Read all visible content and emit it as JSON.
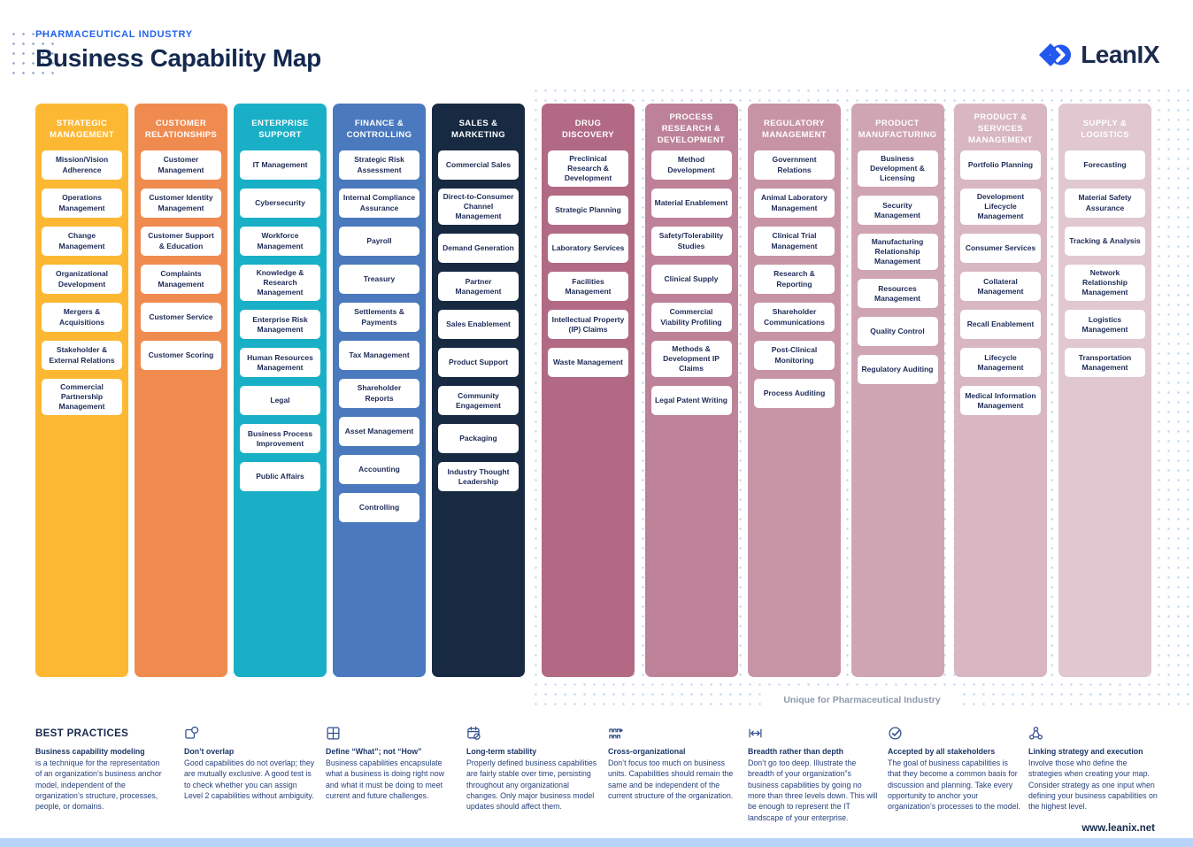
{
  "header": {
    "eyebrow": "PHARMACEUTICAL INDUSTRY",
    "title": "Business Capability Map",
    "logo_text": "LeanIX"
  },
  "brand_colors": {
    "eyebrow_blue": "#2563eb",
    "title_navy": "#14294e",
    "logo_blue": "#2257f0",
    "dot_blue": "#c2d6f2",
    "bottom_bar_blue": "#b9d3f8"
  },
  "columns": [
    {
      "title": "STRATEGIC MANAGEMENT",
      "color": "#FDB833",
      "items": [
        "Mission/Vision Adherence",
        "Operations Management",
        "Change Management",
        "Organizational Development",
        "Mergers & Acquisitions",
        "Stakeholder & External Relations",
        "Commercial Partnership Management"
      ]
    },
    {
      "title": "CUSTOMER RELATIONSHIPS",
      "color": "#F08B50",
      "items": [
        "Customer Management",
        "Customer Identity Management",
        "Customer Support & Education",
        "Complaints Management",
        "Customer Service",
        "Customer Scoring"
      ]
    },
    {
      "title": "ENTERPRISE SUPPORT",
      "color": "#19AFC7",
      "items": [
        "IT Management",
        "Cybersecurity",
        "Workforce Management",
        "Knowledge & Research Management",
        "Enterprise Risk Management",
        "Human Resources Management",
        "Legal",
        "Business Process Improvement",
        "Public Affairs"
      ]
    },
    {
      "title": "FINANCE & CONTROLLING",
      "color": "#4A79BE",
      "items": [
        "Strategic Risk Assessment",
        "Internal Compliance Assurance",
        "Payroll",
        "Treasury",
        "Settlements & Payments",
        "Tax Management",
        "Shareholder Reports",
        "Asset Management",
        "Accounting",
        "Controlling"
      ]
    },
    {
      "title": "SALES & MARKETING",
      "color": "#172A42",
      "items": [
        "Commercial Sales",
        "Direct-to-Consumer Channel Management",
        "Demand Generation",
        "Partner Management",
        "Sales Enablement",
        "Product Support",
        "Community Engagement",
        "Packaging",
        "Industry Thought Leadership"
      ]
    },
    {
      "title": "DRUG DISCOVERY",
      "color": "#B26A84",
      "items": [
        "Preclinical Research & Development",
        "Strategic Planning",
        "Laboratory Services",
        "Facilities Management",
        "Intellectual Property (IP) Claims",
        "Waste Management"
      ]
    },
    {
      "title": "PROCESS RESEARCH & DEVELOPMENT",
      "color": "#BD8298",
      "items": [
        "Method Development",
        "Material Enablement",
        "Safety/Tolerability Studies",
        "Clinical Supply",
        "Commercial Viability Profiling",
        "Methods & Development IP Claims",
        "Legal Patent Writing"
      ]
    },
    {
      "title": "REGULATORY MANAGEMENT",
      "color": "#C794A6",
      "items": [
        "Government Relations",
        "Animal Laboratory Management",
        "Clinical Trial Management",
        "Research & Reporting",
        "Shareholder Communications",
        "Post-Clinical Monitoring",
        "Process Auditing"
      ]
    },
    {
      "title": "PRODUCT MANUFACTURING",
      "color": "#CFA4B3",
      "items": [
        "Business Development & Licensing",
        "Security Management",
        "Manufacturing Relationship Management",
        "Resources Management",
        "Quality Control",
        "Regulatory Auditing"
      ]
    },
    {
      "title": "PRODUCT & SERVICES MANAGEMENT",
      "color": "#D8B7C2",
      "items": [
        "Portfolio Planning",
        "Development Lifecycle Management",
        "Consumer Services",
        "Collateral Management",
        "Recall Enablement",
        "Lifecycle Management",
        "Medical Information Management"
      ]
    },
    {
      "title": "SUPPLY & LOGISTICS",
      "color": "#E0C7D0",
      "items": [
        "Forecasting",
        "Material Safety Assurance",
        "Tracking & Analysis",
        "Network Relationship Management",
        "Logistics Management",
        "Transportation Management"
      ]
    }
  ],
  "pharma_note": "Unique for Pharmaceutical Industry",
  "best_practices": {
    "heading": "BEST PRACTICES",
    "items": [
      {
        "icon": null,
        "title": "Business capability modeling",
        "body": "is a technique for the representation of an organization’s business anchor model, independent of the organization’s structure, processes, people, or domains."
      },
      {
        "icon": "overlap-icon",
        "title": "Don’t overlap",
        "body": "Good capabilities do not overlap; they are mutually exclusive. A good test is to check whether you can assign Level 2 capabilities without ambiguity."
      },
      {
        "icon": "grid-icon",
        "title": "Define “What”; not “How”",
        "body": "Business capabilities encapsulate what a business is doing right now and what it must be doing to meet current and future challenges."
      },
      {
        "icon": "calendar-icon",
        "title": "Long-term stability",
        "body": "Properly defined business capabilities are fairly stable over time, persisting throughout any organizational changes. Only major business model updates should affect them."
      },
      {
        "icon": "org-units-icon",
        "title": "Cross-organizational",
        "body": "Don’t focus too much on business units. Capabilities should remain the same and be independent of the current structure of the organization."
      },
      {
        "icon": "breadth-arrow-icon",
        "title": "Breadth rather than depth",
        "body": "Don’t go too deep. Illustrate the breadth of your organization”s business capabilities by going no more than three levels down. This will be enough to represent the IT landscape of your enterprise."
      },
      {
        "icon": "check-circle-icon",
        "title": "Accepted by all stakeholders",
        "body": "The goal of business capabilities is that they become a common basis for discussion and planning. Take every opportunity to anchor your organization’s processes to the model."
      },
      {
        "icon": "linked-nodes-icon",
        "title": "Linking strategy and execution",
        "body": "Involve those who define the strategies when creating your map. Consider strategy as one input when defining your business capabilities on the highest level."
      }
    ]
  },
  "footer": {
    "url": "www.leanix.net"
  }
}
